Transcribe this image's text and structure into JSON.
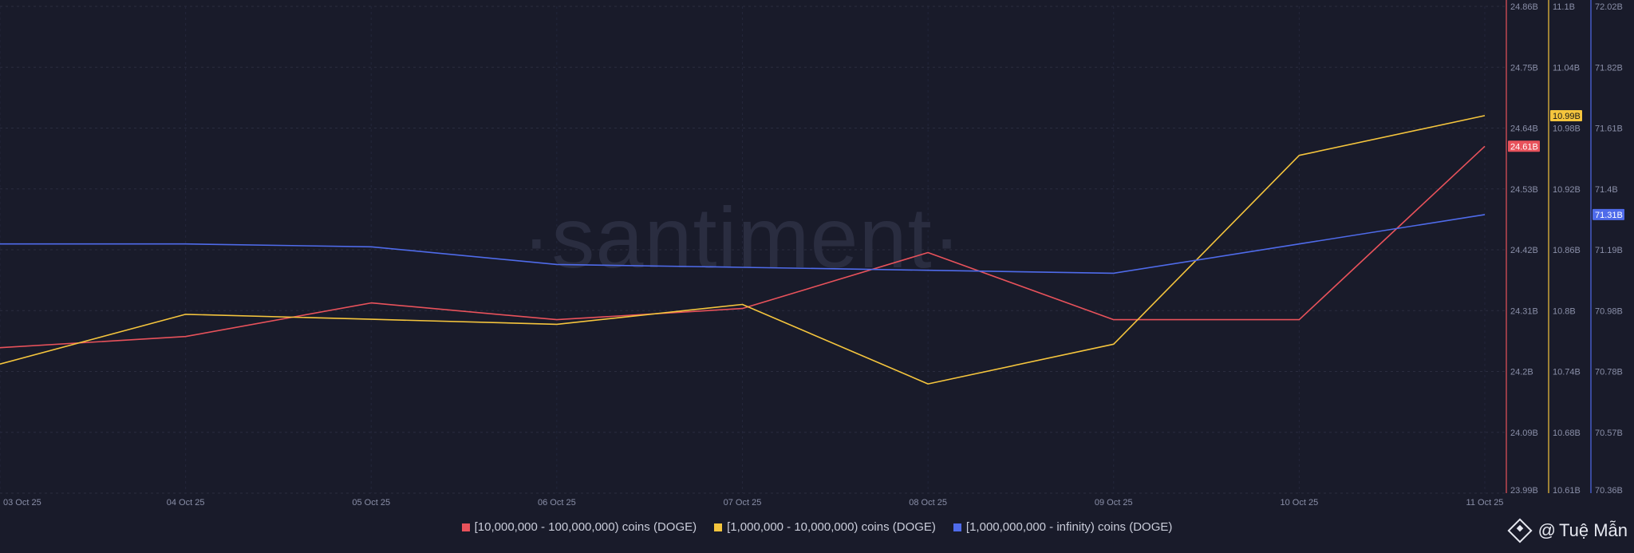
{
  "watermark": "·santiment·",
  "brand": {
    "at": "@",
    "name": "Tuệ Mẫn"
  },
  "chart_data": {
    "type": "line",
    "x": [
      "03 Oct 25",
      "04 Oct 25",
      "05 Oct 25",
      "06 Oct 25",
      "07 Oct 25",
      "08 Oct 25",
      "09 Oct 25",
      "10 Oct 25",
      "11 Oct 25"
    ],
    "grid": true,
    "legend_position": "bottom-center",
    "series": [
      {
        "name": "[10,000,000 - 100,000,000) coins (DOGE)",
        "color": "#e8525b",
        "axis": 0,
        "values": [
          24.25,
          24.27,
          24.33,
          24.3,
          24.32,
          24.42,
          24.3,
          24.3,
          24.61
        ],
        "last_label": "24.61B"
      },
      {
        "name": "[1,000,000 - 10,000,000) coins (DOGE)",
        "color": "#f5c53d",
        "axis": 1,
        "values": [
          10.74,
          10.79,
          10.785,
          10.78,
          10.8,
          10.72,
          10.76,
          10.95,
          10.99
        ],
        "last_label": "10.99B"
      },
      {
        "name": "[1,000,000,000 - infinity) coins (DOGE)",
        "color": "#4f6bea",
        "axis": 2,
        "values": [
          71.21,
          71.21,
          71.2,
          71.14,
          71.13,
          71.12,
          71.11,
          71.21,
          71.31
        ],
        "last_label": "71.31B"
      }
    ],
    "y_axes": [
      {
        "color": "#e8525b",
        "min": 23.99,
        "max": 24.86,
        "ticks": [
          "24.86B",
          "24.75B",
          "24.64B",
          "24.53B",
          "24.42B",
          "24.31B",
          "24.2B",
          "24.09B",
          "23.99B"
        ]
      },
      {
        "color": "#f5c53d",
        "min": 10.61,
        "max": 11.1,
        "ticks": [
          "11.1B",
          "11.04B",
          "10.98B",
          "10.92B",
          "10.86B",
          "10.8B",
          "10.74B",
          "10.68B",
          "10.61B"
        ]
      },
      {
        "color": "#4f6bea",
        "min": 70.36,
        "max": 72.02,
        "ticks": [
          "72.02B",
          "71.82B",
          "71.61B",
          "71.4B",
          "71.19B",
          "70.98B",
          "70.78B",
          "70.57B",
          "70.36B"
        ]
      }
    ]
  }
}
